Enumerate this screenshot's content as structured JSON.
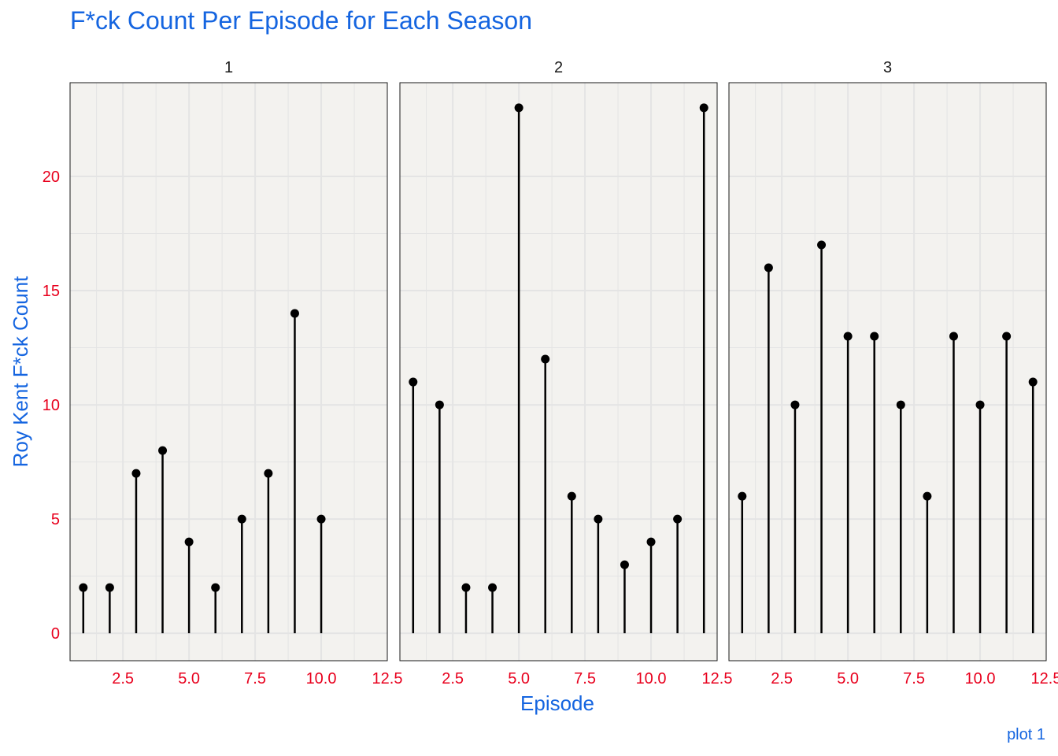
{
  "colors": {
    "title": "#1565e0",
    "axis_title": "#1565e0",
    "tick_label": "#e8001d",
    "panel_bg": "#f3f2ef",
    "grid": "#e4e4e4",
    "mark": "#000000",
    "strip_text": "#1a1a1a"
  },
  "caption": "plot 1",
  "chart_data": {
    "type": "lollipop",
    "title": "F*ck Count Per Episode for Each Season",
    "xlabel": "Episode",
    "ylabel": "Roy Kent F*ck Count",
    "xlim": [
      0.5,
      12.5
    ],
    "ylim": [
      -1.2,
      24.1
    ],
    "x_ticks": [
      "2.5",
      "5.0",
      "7.5",
      "10.0",
      "12.5"
    ],
    "y_ticks": [
      "0",
      "5",
      "10",
      "15",
      "20"
    ],
    "grid": true,
    "facet_by": "Season",
    "panels": [
      {
        "label": "1",
        "x": [
          1,
          2,
          3,
          4,
          5,
          6,
          7,
          8,
          9,
          10
        ],
        "values": [
          2,
          2,
          7,
          8,
          4,
          2,
          5,
          7,
          14,
          5
        ]
      },
      {
        "label": "2",
        "x": [
          1,
          2,
          3,
          4,
          5,
          6,
          7,
          8,
          9,
          10,
          11,
          12
        ],
        "values": [
          11,
          10,
          2,
          2,
          23,
          12,
          6,
          5,
          3,
          4,
          5,
          23
        ]
      },
      {
        "label": "3",
        "x": [
          1,
          2,
          3,
          4,
          5,
          6,
          7,
          8,
          9,
          10,
          11,
          12
        ],
        "values": [
          6,
          16,
          10,
          17,
          13,
          13,
          10,
          6,
          13,
          10,
          13,
          11
        ]
      }
    ]
  }
}
